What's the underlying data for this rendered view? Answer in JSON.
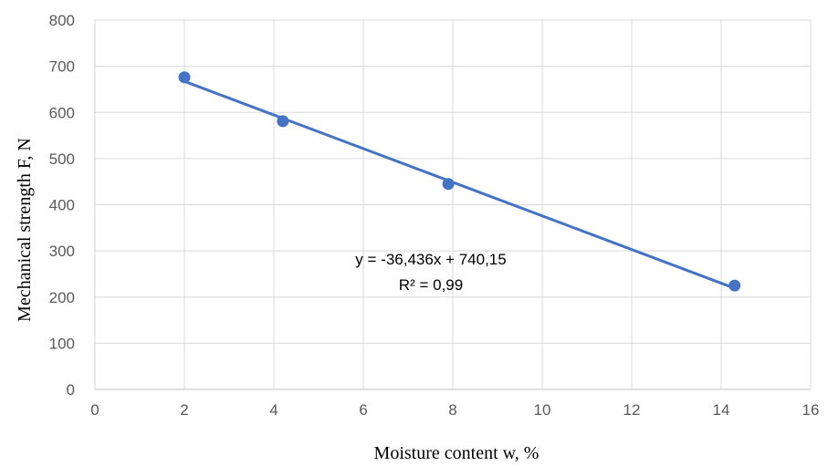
{
  "chart_data": {
    "type": "scatter",
    "xlabel": "Moisture content w, %",
    "ylabel": "Mechanical strength F, N",
    "xlim": [
      0,
      16
    ],
    "ylim": [
      0,
      800
    ],
    "xticks": [
      0,
      2,
      4,
      6,
      8,
      10,
      12,
      14,
      16
    ],
    "yticks": [
      0,
      100,
      200,
      300,
      400,
      500,
      600,
      700,
      800
    ],
    "grid": true,
    "legend": "none",
    "series": [
      {
        "x": [
          2.0,
          4.2,
          7.9,
          14.3
        ],
        "y": [
          676,
          581,
          445,
          225
        ],
        "color": "#4472C4"
      }
    ],
    "trendline": {
      "type": "linear",
      "slope": -36.436,
      "intercept": 740.15,
      "x_range": [
        2.0,
        14.3
      ],
      "color": "#4472C4"
    },
    "annotations": {
      "equation": "y = -36,436x + 740,15",
      "r_squared": "R² = 0,99"
    }
  }
}
